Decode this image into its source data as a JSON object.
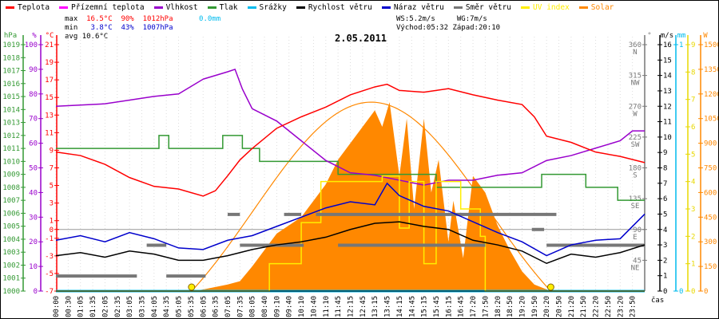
{
  "legend": [
    {
      "label": "Teplota",
      "color": "#ff0000"
    },
    {
      "label": "Přízemní teplota",
      "color": "#ff00ff"
    },
    {
      "label": "Vlhkost",
      "color": "#9900cc"
    },
    {
      "label": "Tlak",
      "color": "#339933"
    },
    {
      "label": "Srážky",
      "color": "#00bbee"
    },
    {
      "label": "Rychlost větru",
      "color": "#000000"
    },
    {
      "label": "Náraz větru",
      "color": "#0000cc"
    },
    {
      "label": "Směr větru",
      "color": "#777777"
    },
    {
      "label": "UV index",
      "color": "#ffee00"
    },
    {
      "label": "Solar",
      "color": "#ff8800"
    }
  ],
  "stats": {
    "max_label": "max",
    "max_temp": "16.5°C",
    "max_hum": "90%",
    "max_press": "1012hPa",
    "rain": "0.0mm",
    "min_label": "min",
    "min_temp": "3.8°C",
    "min_hum": "43%",
    "min_press": "1007hPa",
    "avg_label": "avg",
    "avg_temp": "10.6°C",
    "ws": "WS:5.2m/s",
    "wg": "WG:7m/s",
    "sunrise": "Východ:05:32",
    "sunset": "Západ:20:10"
  },
  "chart_data": {
    "type": "line",
    "title": "2.05.2011",
    "xlabel": "čas",
    "x_ticks": [
      "00:00",
      "00:30",
      "01:05",
      "01:35",
      "02:05",
      "02:35",
      "03:05",
      "03:35",
      "04:05",
      "04:35",
      "05:05",
      "05:35",
      "06:05",
      "06:35",
      "07:05",
      "07:35",
      "08:05",
      "08:40",
      "09:10",
      "09:40",
      "10:10",
      "10:40",
      "11:10",
      "11:45",
      "12:15",
      "12:45",
      "13:15",
      "13:45",
      "14:15",
      "14:45",
      "15:15",
      "15:45",
      "16:15",
      "16:45",
      "17:20",
      "17:50",
      "18:20",
      "18:50",
      "19:20",
      "19:50",
      "20:20",
      "20:50",
      "21:20",
      "21:50",
      "22:20",
      "22:50",
      "23:20",
      "23:50"
    ],
    "axes": {
      "pressure": {
        "unit": "hPa",
        "range": [
          1000,
          1019
        ],
        "ticks": [
          1000,
          1001,
          1002,
          1003,
          1004,
          1005,
          1006,
          1007,
          1008,
          1009,
          1010,
          1011,
          1012,
          1013,
          1014,
          1015,
          1016,
          1017,
          1018,
          1019
        ]
      },
      "humidity": {
        "unit": "%",
        "range": [
          0,
          100
        ],
        "ticks": [
          0,
          10,
          20,
          30,
          40,
          50,
          60,
          70,
          80,
          90,
          100
        ]
      },
      "temperature": {
        "unit": "°C",
        "range": [
          -7,
          21
        ],
        "ticks": [
          -7,
          -5,
          -3,
          -1,
          0,
          1,
          3,
          5,
          7,
          9,
          11,
          13,
          15,
          17,
          19,
          21
        ]
      },
      "direction": {
        "unit": "°",
        "range": [
          0,
          360
        ],
        "ticks": [
          {
            "v": 45,
            "l": "NE"
          },
          {
            "v": 90,
            "l": "E"
          },
          {
            "v": 135,
            "l": "SE"
          },
          {
            "v": 180,
            "l": "S"
          },
          {
            "v": 225,
            "l": "SW"
          },
          {
            "v": 270,
            "l": "W"
          },
          {
            "v": 315,
            "l": "NW"
          },
          {
            "v": 360,
            "l": "N"
          }
        ]
      },
      "wind": {
        "unit": "m/s",
        "range": [
          0,
          16
        ],
        "ticks": [
          0,
          1,
          2,
          3,
          4,
          5,
          6,
          7,
          8,
          9,
          10,
          11,
          12,
          13,
          14,
          15,
          16
        ]
      },
      "rain": {
        "unit": "mm",
        "range": [
          0,
          1
        ],
        "ticks": [
          0,
          1
        ]
      },
      "uv": {
        "unit": "",
        "range": [
          0,
          9
        ],
        "ticks": [
          0,
          1,
          2,
          3,
          4,
          5,
          6,
          7,
          8,
          9
        ]
      },
      "solar": {
        "unit": "W",
        "range": [
          0,
          1500
        ],
        "ticks": [
          0,
          150,
          300,
          450,
          600,
          750,
          900,
          1050,
          1200,
          1350,
          1500
        ]
      }
    },
    "series": [
      {
        "name": "Teplota",
        "axis": "temperature",
        "points": [
          [
            0,
            8.8
          ],
          [
            1,
            8.4
          ],
          [
            2,
            7.4
          ],
          [
            3,
            5.9
          ],
          [
            4,
            4.9
          ],
          [
            5,
            4.6
          ],
          [
            6,
            3.8
          ],
          [
            6.5,
            4.4
          ],
          [
            7,
            6.1
          ],
          [
            7.5,
            7.9
          ],
          [
            8,
            9.2
          ],
          [
            9,
            11.5
          ],
          [
            10,
            12.8
          ],
          [
            11,
            13.9
          ],
          [
            12,
            15.3
          ],
          [
            13,
            16.2
          ],
          [
            13.5,
            16.5
          ],
          [
            14,
            15.8
          ],
          [
            15,
            15.6
          ],
          [
            16,
            16.0
          ],
          [
            17,
            15.3
          ],
          [
            18,
            14.7
          ],
          [
            19,
            14.2
          ],
          [
            19.5,
            12.8
          ],
          [
            20,
            10.6
          ],
          [
            21,
            9.9
          ],
          [
            22,
            8.8
          ],
          [
            23,
            8.3
          ],
          [
            24,
            7.6
          ]
        ]
      },
      {
        "name": "Vlhkost",
        "axis": "humidity",
        "points": [
          [
            0,
            75
          ],
          [
            2,
            76
          ],
          [
            4,
            79
          ],
          [
            5,
            80
          ],
          [
            6,
            86
          ],
          [
            7,
            89
          ],
          [
            7.3,
            90
          ],
          [
            7.6,
            82
          ],
          [
            8,
            74
          ],
          [
            9,
            69
          ],
          [
            10,
            61
          ],
          [
            11,
            53
          ],
          [
            12,
            48
          ],
          [
            13,
            47
          ],
          [
            14,
            45
          ],
          [
            15,
            43
          ],
          [
            16,
            45
          ],
          [
            17,
            45
          ],
          [
            18,
            47
          ],
          [
            19,
            48
          ],
          [
            20,
            53
          ],
          [
            21,
            55
          ],
          [
            22,
            58
          ],
          [
            23,
            61
          ],
          [
            23.5,
            65
          ],
          [
            24,
            65
          ]
        ]
      },
      {
        "name": "Tlak",
        "axis": "pressure",
        "step": true,
        "points": [
          [
            0,
            1011
          ],
          [
            4.2,
            1012
          ],
          [
            4.6,
            1011
          ],
          [
            6.8,
            1012
          ],
          [
            7.6,
            1011
          ],
          [
            8.3,
            1010
          ],
          [
            11.5,
            1009
          ],
          [
            15.5,
            1008
          ],
          [
            19.8,
            1009
          ],
          [
            21.6,
            1008
          ],
          [
            22.9,
            1007
          ],
          [
            24,
            1007
          ]
        ]
      },
      {
        "name": "Rychlost větru",
        "axis": "wind",
        "points": [
          [
            0,
            2.3
          ],
          [
            1,
            2.5
          ],
          [
            2,
            2.2
          ],
          [
            3,
            2.6
          ],
          [
            4,
            2.4
          ],
          [
            5,
            2.0
          ],
          [
            6,
            2.0
          ],
          [
            7,
            2.3
          ],
          [
            8,
            2.7
          ],
          [
            9,
            3.0
          ],
          [
            10,
            3.2
          ],
          [
            11,
            3.5
          ],
          [
            12,
            4.0
          ],
          [
            13,
            4.4
          ],
          [
            14,
            4.5
          ],
          [
            15,
            4.2
          ],
          [
            16,
            4.0
          ],
          [
            17,
            3.3
          ],
          [
            18,
            3.0
          ],
          [
            19,
            2.6
          ],
          [
            20,
            1.8
          ],
          [
            21,
            2.4
          ],
          [
            22,
            2.2
          ],
          [
            23,
            2.5
          ],
          [
            24,
            3.0
          ]
        ]
      },
      {
        "name": "Náraz větru",
        "axis": "wind",
        "points": [
          [
            0,
            3.3
          ],
          [
            1,
            3.6
          ],
          [
            2,
            3.2
          ],
          [
            3,
            3.8
          ],
          [
            4,
            3.4
          ],
          [
            5,
            2.8
          ],
          [
            6,
            2.7
          ],
          [
            7,
            3.3
          ],
          [
            8,
            3.6
          ],
          [
            9,
            4.2
          ],
          [
            10,
            4.8
          ],
          [
            11,
            5.4
          ],
          [
            12,
            5.8
          ],
          [
            13,
            5.6
          ],
          [
            13.5,
            7
          ],
          [
            14,
            6.2
          ],
          [
            15,
            5.5
          ],
          [
            16,
            5.2
          ],
          [
            17,
            4.5
          ],
          [
            18,
            3.8
          ],
          [
            19,
            3.2
          ],
          [
            20,
            2.3
          ],
          [
            21,
            3.0
          ],
          [
            22,
            3.3
          ],
          [
            23,
            3.4
          ],
          [
            24,
            5.0
          ]
        ]
      },
      {
        "name": "Srážky",
        "axis": "rain",
        "points": [
          [
            0,
            0
          ],
          [
            24,
            0
          ]
        ]
      },
      {
        "name": "UV index",
        "axis": "uv",
        "step": true,
        "points": [
          [
            0,
            0
          ],
          [
            8.6,
            0
          ],
          [
            8.7,
            1
          ],
          [
            10,
            2.5
          ],
          [
            10.8,
            4
          ],
          [
            12.8,
            4
          ],
          [
            13.3,
            4.2
          ],
          [
            14,
            2.3
          ],
          [
            14.4,
            4
          ],
          [
            15,
            1
          ],
          [
            15.5,
            4
          ],
          [
            16.5,
            3
          ],
          [
            17.3,
            2
          ],
          [
            17.5,
            0
          ],
          [
            24,
            0
          ]
        ]
      },
      {
        "name": "Solar",
        "axis": "solar",
        "area": true,
        "points": [
          [
            5.53,
            0
          ],
          [
            6,
            10
          ],
          [
            7,
            40
          ],
          [
            7.5,
            60
          ],
          [
            8,
            150
          ],
          [
            8.5,
            250
          ],
          [
            9,
            350
          ],
          [
            10,
            450
          ],
          [
            10.5,
            550
          ],
          [
            11,
            650
          ],
          [
            11.5,
            800
          ],
          [
            12,
            900
          ],
          [
            12.5,
            1000
          ],
          [
            13,
            1100
          ],
          [
            13.3,
            1000
          ],
          [
            13.6,
            1150
          ],
          [
            14,
            700
          ],
          [
            14.3,
            1050
          ],
          [
            14.6,
            500
          ],
          [
            15,
            1050
          ],
          [
            15.3,
            600
          ],
          [
            15.6,
            800
          ],
          [
            16,
            300
          ],
          [
            16.2,
            550
          ],
          [
            16.6,
            200
          ],
          [
            17,
            700
          ],
          [
            17.5,
            600
          ],
          [
            18,
            400
          ],
          [
            18.5,
            250
          ],
          [
            19,
            120
          ],
          [
            19.5,
            40
          ],
          [
            20.17,
            0
          ]
        ]
      }
    ],
    "direction_segments": [
      [
        0,
        3.3,
        22
      ],
      [
        3.7,
        4.5,
        67
      ],
      [
        4.5,
        6.1,
        22
      ],
      [
        7,
        7.5,
        112
      ],
      [
        7.5,
        10.1,
        67
      ],
      [
        9.3,
        10,
        112
      ],
      [
        10.6,
        20.4,
        112
      ],
      [
        11.5,
        17.5,
        67
      ],
      [
        19.4,
        19.9,
        90
      ],
      [
        20,
        24,
        67
      ]
    ],
    "theoretical_solar_peak": 1150,
    "sunrise_hour": 5.53,
    "sunset_hour": 20.17
  }
}
